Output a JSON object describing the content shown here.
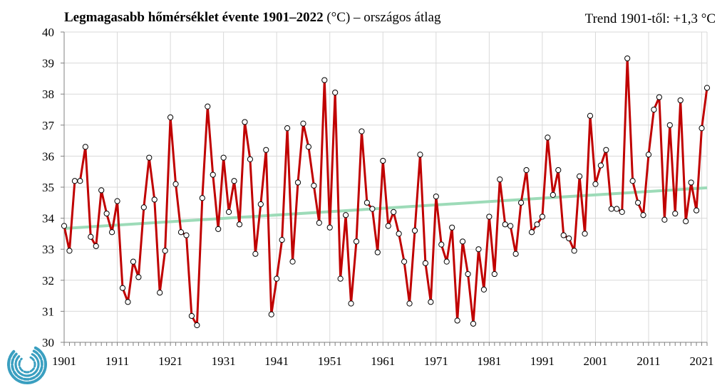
{
  "title_bold": "Legmagasabb hőmérséklet évente 1901–2022",
  "title_rest": " (°C) – országos átlag",
  "trend_note": "Trend 1901-től: +1,3 °C",
  "colors": {
    "series": "#c00000",
    "trend": "#9ddbb8",
    "grid": "#d9d9d9",
    "axis": "#808080",
    "logo": "#3a9fc0"
  },
  "chart_data": {
    "type": "line",
    "title": "Legmagasabb hőmérséklet évente 1901–2022 (°C) – országos átlag",
    "xlabel": "",
    "ylabel": "",
    "xlim": [
      1901,
      2022
    ],
    "ylim": [
      30,
      40
    ],
    "x_ticks": [
      "1901",
      "1911",
      "1921",
      "1931",
      "1941",
      "1951",
      "1961",
      "1971",
      "1981",
      "1991",
      "2001",
      "2011",
      "2021"
    ],
    "y_ticks": [
      "30",
      "31",
      "32",
      "33",
      "34",
      "35",
      "36",
      "37",
      "38",
      "39",
      "40"
    ],
    "years_start": 1901,
    "series": [
      {
        "name": "Legmagasabb hőmérséklet",
        "values": [
          33.75,
          32.95,
          35.2,
          35.2,
          36.3,
          33.4,
          33.1,
          34.9,
          34.15,
          33.55,
          34.55,
          31.75,
          31.3,
          32.6,
          32.1,
          34.35,
          35.95,
          34.6,
          31.6,
          32.95,
          37.25,
          35.1,
          33.55,
          33.45,
          30.85,
          30.55,
          34.65,
          37.6,
          35.4,
          33.65,
          35.95,
          34.2,
          35.2,
          33.8,
          37.1,
          35.9,
          32.85,
          34.45,
          36.2,
          30.9,
          32.05,
          33.3,
          36.9,
          32.6,
          35.15,
          37.05,
          36.3,
          35.05,
          33.85,
          38.45,
          33.7,
          38.05,
          32.05,
          34.1,
          31.25,
          33.25,
          36.8,
          34.5,
          34.3,
          32.9,
          35.85,
          33.75,
          34.2,
          33.5,
          32.6,
          31.25,
          33.6,
          36.05,
          32.55,
          31.3,
          34.7,
          33.15,
          32.6,
          33.7,
          30.7,
          33.25,
          32.2,
          30.6,
          33.0,
          31.7,
          34.05,
          32.2,
          35.25,
          33.8,
          33.75,
          32.85,
          34.5,
          35.55,
          33.55,
          33.8,
          34.05,
          36.6,
          34.75,
          35.55,
          33.45,
          33.35,
          32.95,
          35.35,
          33.5,
          37.3,
          35.1,
          35.7,
          36.2,
          34.3,
          34.3,
          34.2,
          39.15,
          35.2,
          34.5,
          34.1,
          36.05,
          37.5,
          37.9,
          33.95,
          37.0,
          34.15,
          37.8,
          33.9,
          35.15,
          34.25,
          36.9,
          38.2
        ]
      },
      {
        "name": "Trend",
        "x": [
          1901,
          2022
        ],
        "values": [
          33.67,
          34.98
        ]
      }
    ]
  }
}
